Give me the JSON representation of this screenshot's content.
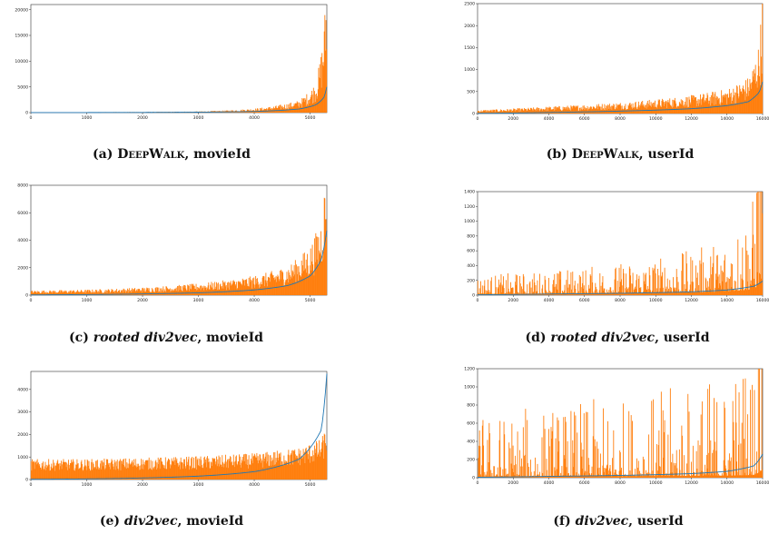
{
  "colors": {
    "bars": "#ff7f0e",
    "line": "#1f77b4",
    "axis": "#333333"
  },
  "panels": [
    {
      "id": "a",
      "caption": {
        "prefix": "(a) ",
        "method": "DeepWalk",
        "method_style": "smallcaps",
        "suffix": ", movieId"
      }
    },
    {
      "id": "b",
      "caption": {
        "prefix": "(b) ",
        "method": "DeepWalk",
        "method_style": "smallcaps",
        "suffix": ", userId"
      }
    },
    {
      "id": "c",
      "caption": {
        "prefix": "(c) ",
        "method": "rooted div2vec",
        "method_style": "italic",
        "suffix": ", movieId"
      }
    },
    {
      "id": "d",
      "caption": {
        "prefix": "(d) ",
        "method": "rooted div2vec",
        "method_style": "italic",
        "suffix": ", userId"
      }
    },
    {
      "id": "e",
      "caption": {
        "prefix": "(e) ",
        "method": "div2vec",
        "method_style": "italic",
        "suffix": ", movieId"
      }
    },
    {
      "id": "f",
      "caption": {
        "prefix": "(f) ",
        "method": "div2vec",
        "method_style": "italic",
        "suffix": ", userId"
      }
    }
  ],
  "chart_data": [
    {
      "panel": "a",
      "type": "bar",
      "title": "",
      "xlabel": "",
      "ylabel": "",
      "xlim": [
        0,
        5300
      ],
      "ylim": [
        0,
        21000
      ],
      "xticks": [
        0,
        1000,
        2000,
        3000,
        4000,
        5000
      ],
      "yticks": [
        0,
        5000,
        10000,
        15000,
        20000
      ],
      "series": [
        {
          "kind": "bars",
          "color": "#ff7f0e",
          "profile": "baseline",
          "approx_points": [
            [
              0,
              50
            ],
            [
              2000,
              100
            ],
            [
              3000,
              180
            ],
            [
              4000,
              600
            ],
            [
              4800,
              1800
            ],
            [
              5100,
              4500
            ],
            [
              5250,
              13000
            ],
            [
              5300,
              21000
            ]
          ]
        },
        {
          "kind": "line",
          "color": "#1f77b4",
          "approx_points": [
            [
              0,
              10
            ],
            [
              2000,
              40
            ],
            [
              3000,
              90
            ],
            [
              4000,
              230
            ],
            [
              4800,
              700
            ],
            [
              5100,
              1500
            ],
            [
              5250,
              3000
            ],
            [
              5300,
              5000
            ]
          ]
        }
      ]
    },
    {
      "panel": "b",
      "type": "bar",
      "title": "",
      "xlabel": "",
      "ylabel": "",
      "xlim": [
        0,
        16000
      ],
      "ylim": [
        0,
        2500
      ],
      "xticks": [
        0,
        2000,
        4000,
        6000,
        8000,
        10000,
        12000,
        14000,
        16000
      ],
      "yticks": [
        0,
        500,
        1000,
        1500,
        2000,
        2500
      ],
      "series": [
        {
          "kind": "bars",
          "color": "#ff7f0e",
          "profile": "baseline",
          "approx_points": [
            [
              0,
              60
            ],
            [
              4000,
              120
            ],
            [
              8000,
              190
            ],
            [
              12000,
              310
            ],
            [
              14000,
              420
            ],
            [
              15200,
              620
            ],
            [
              15800,
              1200
            ],
            [
              16000,
              2200
            ]
          ]
        },
        {
          "kind": "line",
          "color": "#1f77b4",
          "approx_points": [
            [
              0,
              5
            ],
            [
              4000,
              25
            ],
            [
              8000,
              55
            ],
            [
              12000,
              110
            ],
            [
              14000,
              180
            ],
            [
              15200,
              270
            ],
            [
              15800,
              480
            ],
            [
              16000,
              720
            ]
          ]
        }
      ]
    },
    {
      "panel": "c",
      "type": "bar",
      "title": "",
      "xlabel": "",
      "ylabel": "",
      "xlim": [
        0,
        5300
      ],
      "ylim": [
        0,
        8000
      ],
      "xticks": [
        0,
        1000,
        2000,
        3000,
        4000,
        5000
      ],
      "yticks": [
        0,
        2000,
        4000,
        6000,
        8000
      ],
      "series": [
        {
          "kind": "bars",
          "color": "#ff7f0e",
          "profile": "baseline",
          "approx_points": [
            [
              0,
              250
            ],
            [
              1000,
              300
            ],
            [
              2000,
              420
            ],
            [
              3000,
              640
            ],
            [
              4000,
              1050
            ],
            [
              4600,
              1600
            ],
            [
              5000,
              2700
            ],
            [
              5200,
              4200
            ],
            [
              5300,
              7800
            ]
          ]
        },
        {
          "kind": "line",
          "color": "#1f77b4",
          "approx_points": [
            [
              0,
              20
            ],
            [
              1000,
              40
            ],
            [
              2000,
              90
            ],
            [
              3000,
              170
            ],
            [
              4000,
              380
            ],
            [
              4600,
              700
            ],
            [
              5000,
              1400
            ],
            [
              5200,
              2600
            ],
            [
              5300,
              4700
            ]
          ]
        }
      ]
    },
    {
      "panel": "d",
      "type": "bar",
      "title": "",
      "xlabel": "",
      "ylabel": "",
      "xlim": [
        0,
        16000
      ],
      "ylim": [
        0,
        1400
      ],
      "xticks": [
        0,
        2000,
        4000,
        6000,
        8000,
        10000,
        12000,
        14000,
        16000
      ],
      "yticks": [
        0,
        200,
        400,
        600,
        800,
        1000,
        1200,
        1400
      ],
      "series": [
        {
          "kind": "bars",
          "color": "#ff7f0e",
          "profile": "spiky",
          "approx_points": [
            [
              0,
              80
            ],
            [
              4000,
              100
            ],
            [
              8000,
              130
            ],
            [
              12000,
              180
            ],
            [
              14000,
              240
            ],
            [
              15500,
              400
            ],
            [
              16000,
              1350
            ]
          ]
        },
        {
          "kind": "line",
          "color": "#1f77b4",
          "approx_points": [
            [
              0,
              5
            ],
            [
              4000,
              15
            ],
            [
              8000,
              25
            ],
            [
              12000,
              45
            ],
            [
              14000,
              70
            ],
            [
              15500,
              120
            ],
            [
              16000,
              190
            ]
          ]
        }
      ]
    },
    {
      "panel": "e",
      "type": "bar",
      "title": "",
      "xlabel": "",
      "ylabel": "",
      "xlim": [
        0,
        5300
      ],
      "ylim": [
        0,
        4800
      ],
      "xticks": [
        0,
        1000,
        2000,
        3000,
        4000,
        5000
      ],
      "yticks": [
        0,
        1000,
        2000,
        3000,
        4000
      ],
      "series": [
        {
          "kind": "bars",
          "color": "#ff7f0e",
          "profile": "dense",
          "approx_points": [
            [
              0,
              700
            ],
            [
              1000,
              700
            ],
            [
              2000,
              750
            ],
            [
              3000,
              800
            ],
            [
              4000,
              900
            ],
            [
              4800,
              1100
            ],
            [
              5200,
              1400
            ],
            [
              5300,
              1900
            ]
          ]
        },
        {
          "kind": "line",
          "color": "#1f77b4",
          "approx_points": [
            [
              0,
              10
            ],
            [
              1000,
              30
            ],
            [
              2000,
              70
            ],
            [
              3000,
              150
            ],
            [
              4000,
              350
            ],
            [
              4800,
              900
            ],
            [
              5200,
              2200
            ],
            [
              5300,
              4700
            ]
          ]
        }
      ]
    },
    {
      "panel": "f",
      "type": "bar",
      "title": "",
      "xlabel": "",
      "ylabel": "",
      "xlim": [
        0,
        16000
      ],
      "ylim": [
        0,
        1200
      ],
      "xticks": [
        0,
        2000,
        4000,
        6000,
        8000,
        10000,
        12000,
        14000,
        16000
      ],
      "yticks": [
        0,
        200,
        400,
        600,
        800,
        1000,
        1200
      ],
      "series": [
        {
          "kind": "bars",
          "color": "#ff7f0e",
          "profile": "very-spiky",
          "approx_points": [
            [
              0,
              90
            ],
            [
              4000,
              100
            ],
            [
              8000,
              110
            ],
            [
              12000,
              130
            ],
            [
              14000,
              150
            ],
            [
              15500,
              200
            ],
            [
              16000,
              620
            ]
          ]
        },
        {
          "kind": "line",
          "color": "#1f77b4",
          "approx_points": [
            [
              0,
              5
            ],
            [
              4000,
              15
            ],
            [
              8000,
              25
            ],
            [
              12000,
              45
            ],
            [
              14000,
              70
            ],
            [
              15500,
              130
            ],
            [
              16000,
              260
            ]
          ]
        }
      ]
    }
  ]
}
